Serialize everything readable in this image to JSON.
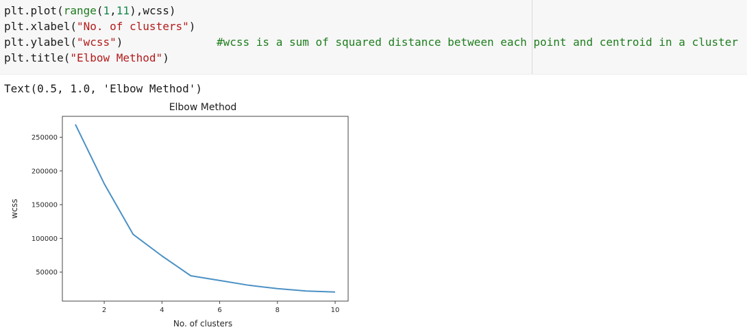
{
  "code": {
    "line1": {
      "a": "plt.plot(",
      "b": "range",
      "c": "(",
      "d": "1",
      "e": ",",
      "f": "11",
      "g": "),wcss)"
    },
    "line2": {
      "a": "plt.xlabel(",
      "b": "\"No. of clusters\"",
      "c": ")"
    },
    "line3": {
      "a": "plt.ylabel(",
      "b": "\"wcss\"",
      "c": ")",
      "comment": "#wcss is a sum of squared distance between each point and centroid in a cluster"
    },
    "line4": {
      "a": "plt.title(",
      "b": "\"Elbow Method\"",
      "c": ")"
    }
  },
  "output": {
    "text": "Text(0.5, 1.0, 'Elbow Method')"
  },
  "colors": {
    "line": "#4a90c4",
    "axis": "#444444"
  },
  "chart_data": {
    "type": "line",
    "title": "Elbow Method",
    "xlabel": "No. of clusters",
    "ylabel": "wcss",
    "x": [
      1,
      2,
      3,
      4,
      5,
      6,
      7,
      8,
      9,
      10
    ],
    "series": [
      {
        "values": [
          269000,
          181000,
          106000,
          74000,
          44500,
          37500,
          30500,
          25500,
          22000,
          20500
        ]
      }
    ],
    "xticks": [
      2,
      4,
      6,
      8,
      10
    ],
    "yticks": [
      50000,
      100000,
      150000,
      200000,
      250000
    ],
    "xlim": [
      0.55,
      10.45
    ],
    "ylim": [
      7000,
      281000
    ],
    "grid": false
  }
}
